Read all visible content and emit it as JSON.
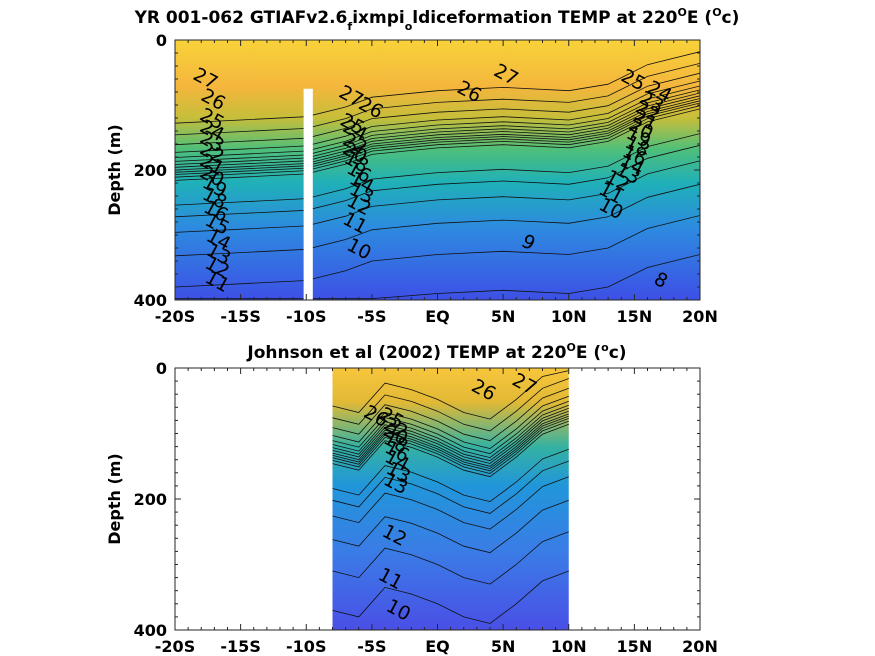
{
  "chart_data": [
    {
      "type": "heatmap",
      "title": "YR 001-062 GTIAFv2.6",
      "title_sub1": "f",
      "title_mid": "ixmpi",
      "title_sub2": "o",
      "title_rest": "ldiceformation TEMP at 220",
      "title_deg": "O",
      "title_unit_a": "E (",
      "title_unit_b": "c)",
      "ylabel": "Depth (m)",
      "xlabel": "",
      "xlim": [
        -20,
        20
      ],
      "ylim": [
        400,
        0
      ],
      "x_ticks": [
        -20,
        -15,
        -10,
        -5,
        0,
        5,
        10,
        15,
        20
      ],
      "x_tick_labels": [
        "-20S",
        "-15S",
        "-10S",
        "-5S",
        "EQ",
        "5N",
        "10N",
        "15N",
        "20N"
      ],
      "y_ticks": [
        0,
        200,
        400
      ],
      "y_tick_labels": [
        "0",
        "200",
        "400"
      ],
      "colorbar": "none",
      "grid": false,
      "data_extent": [
        -20,
        20
      ],
      "gap": [
        -10.2,
        -9.5
      ],
      "thermocline": [
        {
          "x": -20,
          "depth": 200
        },
        {
          "x": -15,
          "depth": 195
        },
        {
          "x": -10,
          "depth": 190
        },
        {
          "x": -7,
          "depth": 175
        },
        {
          "x": -5,
          "depth": 160
        },
        {
          "x": 0,
          "depth": 150
        },
        {
          "x": 5,
          "depth": 145
        },
        {
          "x": 10,
          "depth": 150
        },
        {
          "x": 13,
          "depth": 140
        },
        {
          "x": 16,
          "depth": 110
        },
        {
          "x": 20,
          "depth": 90
        }
      ],
      "contour_labels": [
        {
          "value": "27",
          "x": -17.9,
          "depth": 68
        },
        {
          "value": "26",
          "x": -17.3,
          "depth": 100
        },
        {
          "value": "25",
          "x": -17.4,
          "depth": 130
        },
        {
          "value": "24",
          "x": -17.4,
          "depth": 148
        },
        {
          "value": "23",
          "x": -17.4,
          "depth": 165
        },
        {
          "value": "22",
          "x": -17.4,
          "depth": 182
        },
        {
          "value": "21",
          "x": -17.4,
          "depth": 200
        },
        {
          "value": "20",
          "x": -17.4,
          "depth": 218
        },
        {
          "value": "19",
          "x": -17.2,
          "depth": 234
        },
        {
          "value": "18",
          "x": -17.2,
          "depth": 252
        },
        {
          "value": "16",
          "x": -17.1,
          "depth": 272
        },
        {
          "value": "15",
          "x": -17.0,
          "depth": 292
        },
        {
          "value": "14",
          "x": -16.9,
          "depth": 316
        },
        {
          "value": "13",
          "x": -16.9,
          "depth": 338
        },
        {
          "value": "12",
          "x": -17.0,
          "depth": 358
        },
        {
          "value": "11",
          "x": -17.0,
          "depth": 380
        },
        {
          "value": "27",
          "x": -6.8,
          "depth": 95
        },
        {
          "value": "26",
          "x": -5.3,
          "depth": 113
        },
        {
          "value": "25",
          "x": -6.7,
          "depth": 138
        },
        {
          "value": "24",
          "x": -6.5,
          "depth": 148
        },
        {
          "value": "22",
          "x": -6.5,
          "depth": 168
        },
        {
          "value": "20",
          "x": -6.5,
          "depth": 182
        },
        {
          "value": "18",
          "x": -6.4,
          "depth": 196
        },
        {
          "value": "16",
          "x": -6.2,
          "depth": 212
        },
        {
          "value": "14",
          "x": -6.0,
          "depth": 228
        },
        {
          "value": "13",
          "x": -6.0,
          "depth": 244
        },
        {
          "value": "12",
          "x": -6.2,
          "depth": 262
        },
        {
          "value": "11",
          "x": -6.5,
          "depth": 290
        },
        {
          "value": "10",
          "x": -6.2,
          "depth": 330
        },
        {
          "value": "27",
          "x": 5.0,
          "depth": 62
        },
        {
          "value": "26",
          "x": 2.2,
          "depth": 88
        },
        {
          "value": "9",
          "x": 6.7,
          "depth": 320
        },
        {
          "value": "25",
          "x": 14.7,
          "depth": 70
        },
        {
          "value": "24",
          "x": 16.7,
          "depth": 88
        },
        {
          "value": "23",
          "x": 16.1,
          "depth": 104
        },
        {
          "value": "22",
          "x": 15.8,
          "depth": 118
        },
        {
          "value": "21",
          "x": 15.6,
          "depth": 132
        },
        {
          "value": "20",
          "x": 15.3,
          "depth": 145
        },
        {
          "value": "19",
          "x": 15.1,
          "depth": 158
        },
        {
          "value": "18",
          "x": 15.0,
          "depth": 172
        },
        {
          "value": "16",
          "x": 14.8,
          "depth": 186
        },
        {
          "value": "14",
          "x": 14.6,
          "depth": 200
        },
        {
          "value": "13",
          "x": 14.3,
          "depth": 214
        },
        {
          "value": "12",
          "x": 13.5,
          "depth": 225
        },
        {
          "value": "11",
          "x": 13.0,
          "depth": 244
        },
        {
          "value": "10",
          "x": 13.0,
          "depth": 268
        },
        {
          "value": "8",
          "x": 16.8,
          "depth": 378
        }
      ]
    },
    {
      "type": "heatmap",
      "title": "Johnson et al (2002) TEMP at 220",
      "title_deg": "O",
      "title_unit_a": "E (",
      "title_deg2": "o",
      "title_unit_b": "c)",
      "ylabel": "Depth (m)",
      "xlabel": "",
      "xlim": [
        -20,
        20
      ],
      "ylim": [
        400,
        0
      ],
      "x_ticks": [
        -20,
        -15,
        -10,
        -5,
        0,
        5,
        10,
        15,
        20
      ],
      "x_tick_labels": [
        "-20S",
        "-15S",
        "-10S",
        "-5S",
        "EQ",
        "5N",
        "10N",
        "15N",
        "20N"
      ],
      "y_ticks": [
        0,
        200,
        400
      ],
      "y_tick_labels": [
        "0",
        "200",
        "400"
      ],
      "colorbar": "none",
      "grid": false,
      "data_extent": [
        -8,
        10
      ],
      "thermocline": [
        {
          "x": -8,
          "depth": 130
        },
        {
          "x": -6,
          "depth": 140
        },
        {
          "x": -4,
          "depth": 95
        },
        {
          "x": -2,
          "depth": 105
        },
        {
          "x": 0,
          "depth": 120
        },
        {
          "x": 2,
          "depth": 140
        },
        {
          "x": 4,
          "depth": 150
        },
        {
          "x": 6,
          "depth": 120
        },
        {
          "x": 8,
          "depth": 85
        },
        {
          "x": 10,
          "depth": 70
        }
      ],
      "contour_labels": [
        {
          "value": "26",
          "x": -4.9,
          "depth": 82
        },
        {
          "value": "25",
          "x": -3.7,
          "depth": 85
        },
        {
          "value": "27",
          "x": 6.4,
          "depth": 33
        },
        {
          "value": "26",
          "x": 3.3,
          "depth": 42
        },
        {
          "value": "13",
          "x": -3.4,
          "depth": 185
        },
        {
          "value": "12",
          "x": -3.5,
          "depth": 264
        },
        {
          "value": "11",
          "x": -3.8,
          "depth": 330
        },
        {
          "value": "10",
          "x": -3.2,
          "depth": 378
        },
        {
          "value": "13",
          "x": -3.2,
          "depth": 168
        },
        {
          "value": "14",
          "x": -3.3,
          "depth": 150
        },
        {
          "value": "16",
          "x": -3.3,
          "depth": 136
        },
        {
          "value": "18",
          "x": -3.4,
          "depth": 122
        },
        {
          "value": "20",
          "x": -3.4,
          "depth": 110
        },
        {
          "value": "22",
          "x": -3.4,
          "depth": 100
        }
      ]
    }
  ]
}
